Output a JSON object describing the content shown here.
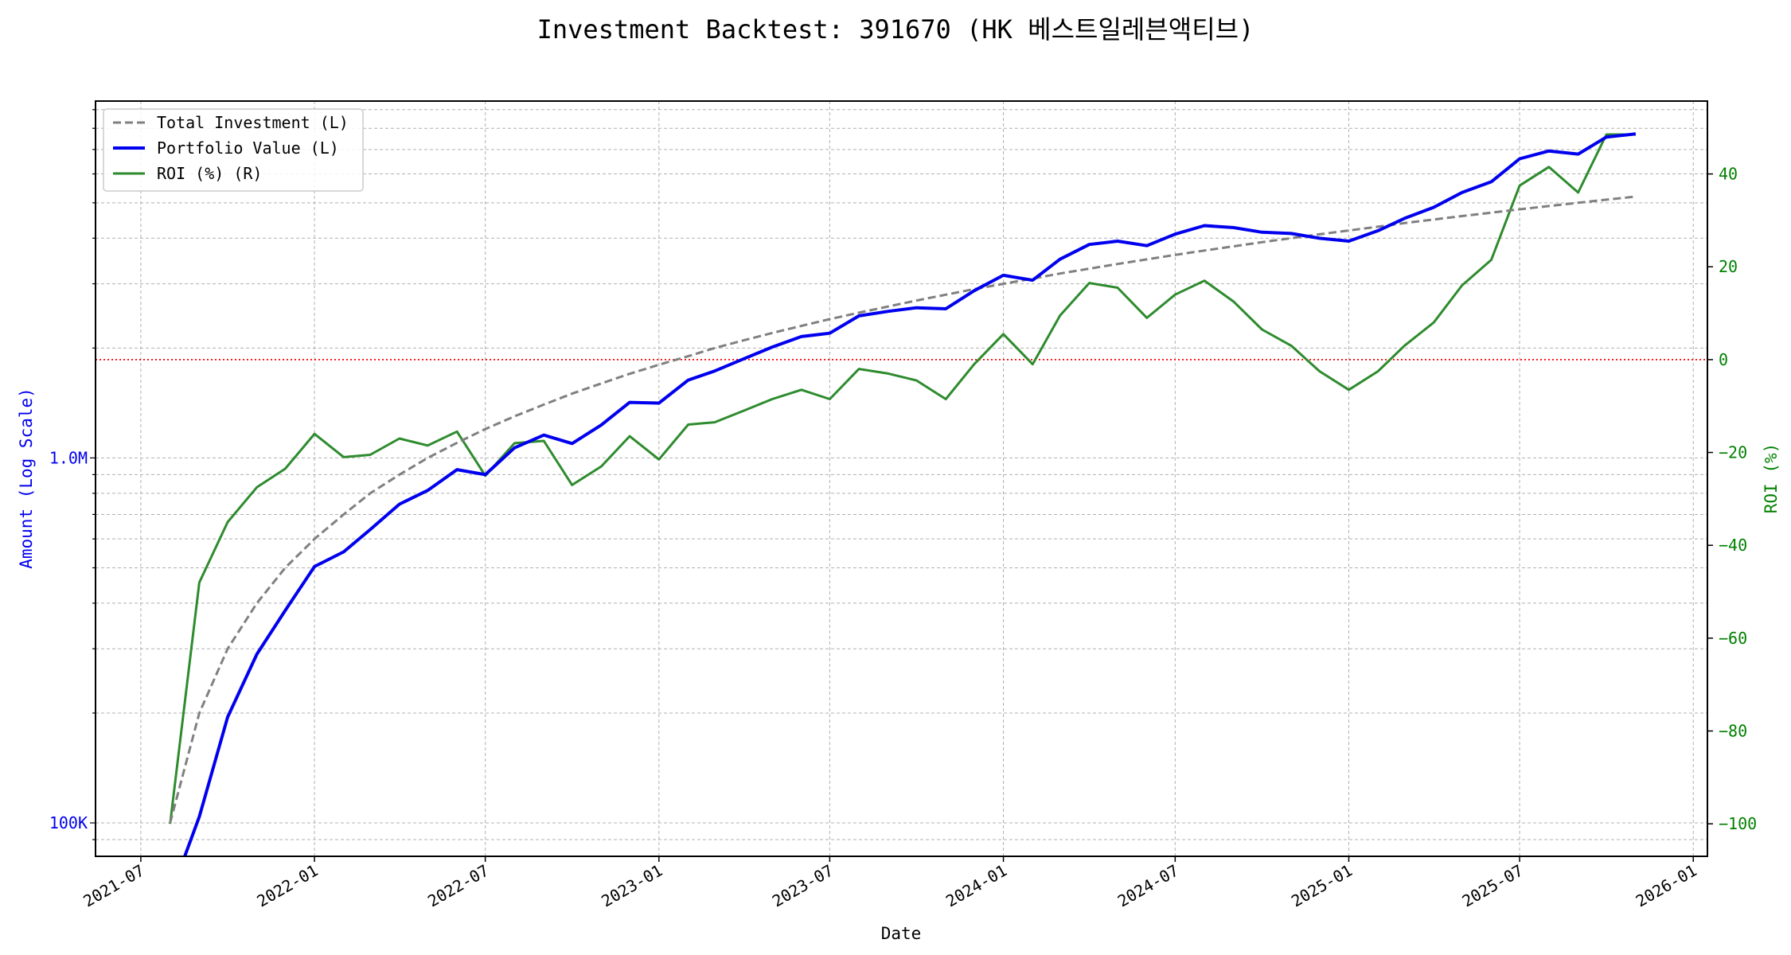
{
  "chart_data": {
    "type": "line",
    "title": "Investment Backtest: 391670 (HK 베스트일레븐액티브)",
    "xlabel": "Date",
    "ylabel_left": "Amount (Log Scale)",
    "ylabel_right": "ROI (%)",
    "left_scale": "log",
    "xlim": [
      "2021-05-14",
      "2026-01-16"
    ],
    "ylim_left": [
      81000,
      9500000
    ],
    "ylim_right": [
      -107,
      55.7
    ],
    "grid": true,
    "legend_placement": "top-left",
    "x_ticks": [
      "2021-07",
      "2022-01",
      "2022-07",
      "2023-01",
      "2023-07",
      "2024-01",
      "2024-07",
      "2025-01",
      "2025-07",
      "2026-01"
    ],
    "y_ticks_left": [
      {
        "value": 100000,
        "label": "100K"
      },
      {
        "value": 1000000,
        "label": "1.0M"
      }
    ],
    "y_ticks_right": [
      -100,
      -80,
      -60,
      -40,
      -20,
      0,
      20,
      40
    ],
    "reference_line": {
      "axis": "right",
      "value": 0,
      "color": "#ff0000",
      "style": "dotted"
    },
    "colors": {
      "total_investment": "#808080",
      "portfolio_value": "#0000ee",
      "roi": "#2e8b2e",
      "left_axis": "#0000ee",
      "right_axis": "#008000"
    },
    "x": [
      "2021-08",
      "2021-09",
      "2021-10",
      "2021-11",
      "2021-12",
      "2022-01",
      "2022-02",
      "2022-03",
      "2022-04",
      "2022-05",
      "2022-06",
      "2022-07",
      "2022-08",
      "2022-09",
      "2022-10",
      "2022-11",
      "2022-12",
      "2023-01",
      "2023-02",
      "2023-03",
      "2023-04",
      "2023-05",
      "2023-06",
      "2023-07",
      "2023-08",
      "2023-09",
      "2023-10",
      "2023-11",
      "2023-12",
      "2024-01",
      "2024-02",
      "2024-03",
      "2024-04",
      "2024-05",
      "2024-06",
      "2024-07",
      "2024-08",
      "2024-09",
      "2024-10",
      "2024-11",
      "2024-12",
      "2025-01",
      "2025-02",
      "2025-03",
      "2025-04",
      "2025-05",
      "2025-06",
      "2025-07",
      "2025-08",
      "2025-09",
      "2025-10",
      "2025-11"
    ],
    "series": [
      {
        "name": "Total Investment (L)",
        "axis": "left",
        "style": "dashed",
        "values": [
          100000,
          200000,
          300000,
          400000,
          500000,
          600000,
          700000,
          800000,
          900000,
          1000000,
          1100000,
          1200000,
          1300000,
          1400000,
          1500000,
          1600000,
          1700000,
          1800000,
          1900000,
          2000000,
          2100000,
          2200000,
          2300000,
          2400000,
          2500000,
          2600000,
          2700000,
          2800000,
          2900000,
          3000000,
          3100000,
          3200000,
          3300000,
          3400000,
          3500000,
          3600000,
          3700000,
          3800000,
          3900000,
          4000000,
          4100000,
          4200000,
          4300000,
          4400000,
          4500000,
          4600000,
          4700000,
          4800000,
          4900000,
          5000000,
          5100000,
          5200000
        ]
      },
      {
        "name": "Portfolio Value (L)",
        "axis": "left",
        "style": "solid",
        "values": [
          0,
          104000,
          195000,
          290000,
          382000,
          504000,
          553000,
          636000,
          747000,
          815000,
          929000,
          900000,
          1066000,
          1155000,
          1095000,
          1232000,
          1420000,
          1413000,
          1634000,
          1730000,
          1869000,
          2013000,
          2150000,
          2196000,
          2450000,
          2522000,
          2579000,
          2562000,
          2871000,
          3165000,
          3069000,
          3504000,
          3845000,
          3927000,
          3815000,
          4104000,
          4329000,
          4275000,
          4154000,
          4120000,
          3998000,
          3927000,
          4193000,
          4532000,
          4860000,
          5336000,
          5711000,
          6600000,
          6934000,
          6800000,
          7573000,
          7722000
        ]
      },
      {
        "name": "ROI (%) (R)",
        "axis": "right",
        "style": "solid",
        "values": [
          -100,
          -48,
          -35,
          -27.5,
          -23.5,
          -16,
          -21,
          -20.5,
          -17,
          -18.5,
          -15.5,
          -25,
          -18,
          -17.5,
          -27,
          -23,
          -16.5,
          -21.5,
          -14,
          -13.5,
          -11,
          -8.5,
          -6.5,
          -8.5,
          -2,
          -3,
          -4.5,
          -8.5,
          -1,
          5.5,
          -1,
          9.5,
          16.5,
          15.5,
          9,
          14,
          17,
          12.5,
          6.5,
          3,
          -2.5,
          -6.5,
          -2.5,
          3,
          8,
          16,
          21.5,
          37.5,
          41.5,
          36,
          48.5,
          48.5
        ]
      }
    ]
  }
}
